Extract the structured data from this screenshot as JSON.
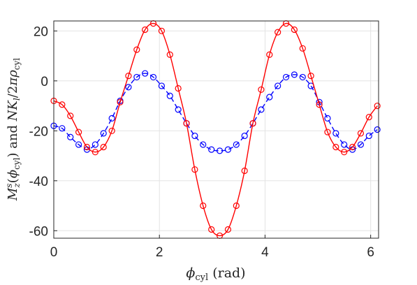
{
  "chart_data": {
    "type": "line",
    "xlabel": "ϕ_cyl (rad)",
    "ylabel": "M_z^s(ϕ_cyl) and NK_l/2πρ_cyl",
    "xlim": [
      0,
      6.15
    ],
    "ylim": [
      -63,
      24
    ],
    "xticks": [
      0,
      2,
      4,
      6
    ],
    "yticks": [
      20,
      0,
      -20,
      -40,
      -60
    ],
    "grid": true,
    "series": [
      {
        "color": "#ff0000",
        "line_style": "solid",
        "marker": "circle",
        "x": [
          0,
          0.157,
          0.314,
          0.471,
          0.628,
          0.785,
          0.942,
          1.1,
          1.257,
          1.414,
          1.571,
          1.728,
          1.885,
          2.042,
          2.199,
          2.356,
          2.513,
          2.67,
          2.827,
          2.985,
          3.142,
          3.299,
          3.456,
          3.613,
          3.77,
          3.927,
          4.084,
          4.241,
          4.398,
          4.555,
          4.712,
          4.869,
          5.027,
          5.184,
          5.341,
          5.498,
          5.655,
          5.812,
          5.969,
          6.126
        ],
        "y": [
          -8,
          -9.5,
          -14,
          -20.5,
          -26.5,
          -28.5,
          -26.5,
          -20,
          -8.5,
          2,
          12.5,
          20.5,
          23,
          20,
          10.5,
          -3,
          -17,
          -35.5,
          -50,
          -59.5,
          -62,
          -59.5,
          -50,
          -36,
          -17,
          -3.5,
          10.5,
          19.5,
          23,
          20.5,
          13,
          2,
          -9.5,
          -20.5,
          -26.5,
          -28.5,
          -26.5,
          -21,
          -14.5,
          -10
        ]
      },
      {
        "color": "#0000ff",
        "line_style": "dashed",
        "marker": "circle",
        "x": [
          0,
          0.157,
          0.314,
          0.471,
          0.628,
          0.785,
          0.942,
          1.1,
          1.257,
          1.414,
          1.571,
          1.728,
          1.885,
          2.042,
          2.199,
          2.356,
          2.513,
          2.67,
          2.827,
          2.985,
          3.142,
          3.299,
          3.456,
          3.613,
          3.77,
          3.927,
          4.084,
          4.241,
          4.398,
          4.555,
          4.712,
          4.869,
          5.027,
          5.184,
          5.341,
          5.498,
          5.655,
          5.812,
          5.969,
          6.126
        ],
        "y": [
          -18,
          -19,
          -22.5,
          -25.5,
          -27.5,
          -25.5,
          -21,
          -15,
          -8,
          -2.5,
          1.5,
          3,
          1.5,
          -2,
          -6,
          -11.5,
          -17,
          -22,
          -25.5,
          -27.5,
          -28,
          -27.5,
          -25.5,
          -22,
          -17,
          -11.5,
          -6.5,
          -2,
          1.5,
          2.5,
          1.5,
          -2,
          -8.5,
          -15,
          -21,
          -25.5,
          -27.5,
          -25.5,
          -22,
          -19.5
        ]
      }
    ]
  }
}
